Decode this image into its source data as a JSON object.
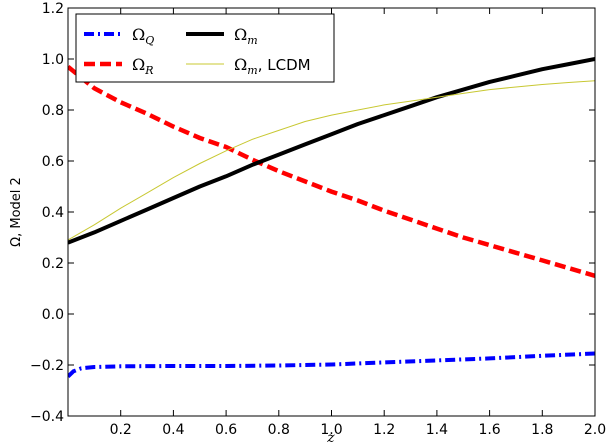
{
  "chart_data": {
    "type": "line",
    "xlabel": "z",
    "ylabel": "Ω, Model 2",
    "xlim": [
      0.0,
      2.0
    ],
    "ylim": [
      -0.4,
      1.2
    ],
    "xticks": [
      0.2,
      0.4,
      0.6,
      0.8,
      1.0,
      1.2,
      1.4,
      1.6,
      1.8,
      2.0
    ],
    "xtick_labels": [
      "0.2",
      "0.4",
      "0.6",
      "0.8",
      "1.0",
      "1.2",
      "1.4",
      "1.6",
      "1.8",
      "2.0"
    ],
    "yticks": [
      -0.4,
      -0.2,
      0.0,
      0.2,
      0.4,
      0.6,
      0.8,
      1.0,
      1.2
    ],
    "ytick_labels": [
      "−0.4",
      "−0.2",
      "0.0",
      "0.2",
      "0.4",
      "0.6",
      "0.8",
      "1.0",
      "1.2"
    ],
    "grid": false,
    "legend_position": "top-left",
    "legend_columns": 2,
    "series": [
      {
        "name": "Ω",
        "subscript": "Q",
        "suffix": "",
        "color": "#0000ff",
        "style": "dash-dot",
        "x": [
          0.0,
          0.02,
          0.05,
          0.1,
          0.2,
          0.4,
          0.6,
          0.8,
          1.0,
          1.2,
          1.4,
          1.6,
          1.8,
          2.0
        ],
        "y": [
          -0.245,
          -0.225,
          -0.213,
          -0.208,
          -0.205,
          -0.204,
          -0.204,
          -0.202,
          -0.198,
          -0.19,
          -0.182,
          -0.174,
          -0.164,
          -0.155
        ]
      },
      {
        "name": "Ω",
        "subscript": "R",
        "suffix": "",
        "color": "#ff0000",
        "style": "dashed",
        "x": [
          0.0,
          0.1,
          0.2,
          0.3,
          0.4,
          0.5,
          0.6,
          0.7,
          0.8,
          0.9,
          1.0,
          1.1,
          1.2,
          1.3,
          1.4,
          1.5,
          1.6,
          1.7,
          1.8,
          1.9,
          2.0
        ],
        "y": [
          0.97,
          0.885,
          0.83,
          0.785,
          0.735,
          0.69,
          0.655,
          0.605,
          0.56,
          0.52,
          0.48,
          0.445,
          0.405,
          0.37,
          0.335,
          0.3,
          0.27,
          0.24,
          0.21,
          0.18,
          0.15
        ]
      },
      {
        "name": "Ω",
        "subscript": "m",
        "suffix": "",
        "color": "#000000",
        "style": "solid-thick",
        "x": [
          0.0,
          0.1,
          0.2,
          0.3,
          0.4,
          0.5,
          0.6,
          0.7,
          0.8,
          0.9,
          1.0,
          1.1,
          1.2,
          1.3,
          1.4,
          1.5,
          1.6,
          1.7,
          1.8,
          1.9,
          2.0
        ],
        "y": [
          0.28,
          0.32,
          0.365,
          0.41,
          0.455,
          0.5,
          0.54,
          0.585,
          0.625,
          0.665,
          0.705,
          0.745,
          0.78,
          0.815,
          0.85,
          0.88,
          0.91,
          0.935,
          0.96,
          0.98,
          1.0
        ]
      },
      {
        "name": "Ω",
        "subscript": "m",
        "suffix": ", LCDM",
        "color": "#c8c832",
        "style": "solid-thin",
        "x": [
          0.0,
          0.1,
          0.2,
          0.3,
          0.4,
          0.5,
          0.6,
          0.7,
          0.8,
          0.9,
          1.0,
          1.1,
          1.2,
          1.3,
          1.4,
          1.5,
          1.6,
          1.7,
          1.8,
          1.9,
          2.0
        ],
        "y": [
          0.29,
          0.35,
          0.415,
          0.475,
          0.535,
          0.59,
          0.64,
          0.685,
          0.72,
          0.755,
          0.78,
          0.8,
          0.82,
          0.835,
          0.85,
          0.865,
          0.88,
          0.89,
          0.9,
          0.908,
          0.915
        ]
      }
    ]
  }
}
